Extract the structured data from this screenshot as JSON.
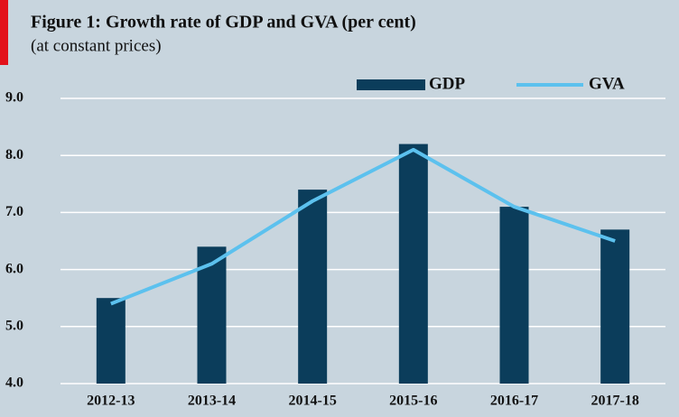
{
  "chart_data": {
    "type": "bar",
    "title": "Figure 1: Growth rate of GDP and GVA (per cent)",
    "subtitle": "(at constant prices)",
    "categories": [
      "2012-13",
      "2013-14",
      "2014-15",
      "2015-16",
      "2016-17",
      "2017-18"
    ],
    "series": [
      {
        "name": "GDP",
        "type": "bar",
        "color": "#0b3d5b",
        "values": [
          5.5,
          6.4,
          7.4,
          8.2,
          7.1,
          6.7
        ]
      },
      {
        "name": "GVA",
        "type": "line",
        "color": "#5cc1ee",
        "values": [
          5.4,
          6.1,
          7.2,
          8.1,
          7.1,
          6.5
        ]
      }
    ],
    "ylim": [
      4,
      9
    ],
    "yticks": [
      {
        "value": 4,
        "label": "4.0"
      },
      {
        "value": 5,
        "label": "5.0"
      },
      {
        "value": 6,
        "label": "6.0"
      },
      {
        "value": 7,
        "label": "7.0"
      },
      {
        "value": 8,
        "label": "8.0"
      },
      {
        "value": 9,
        "label": "9.0"
      }
    ],
    "grid": true,
    "legend": "top-right"
  }
}
